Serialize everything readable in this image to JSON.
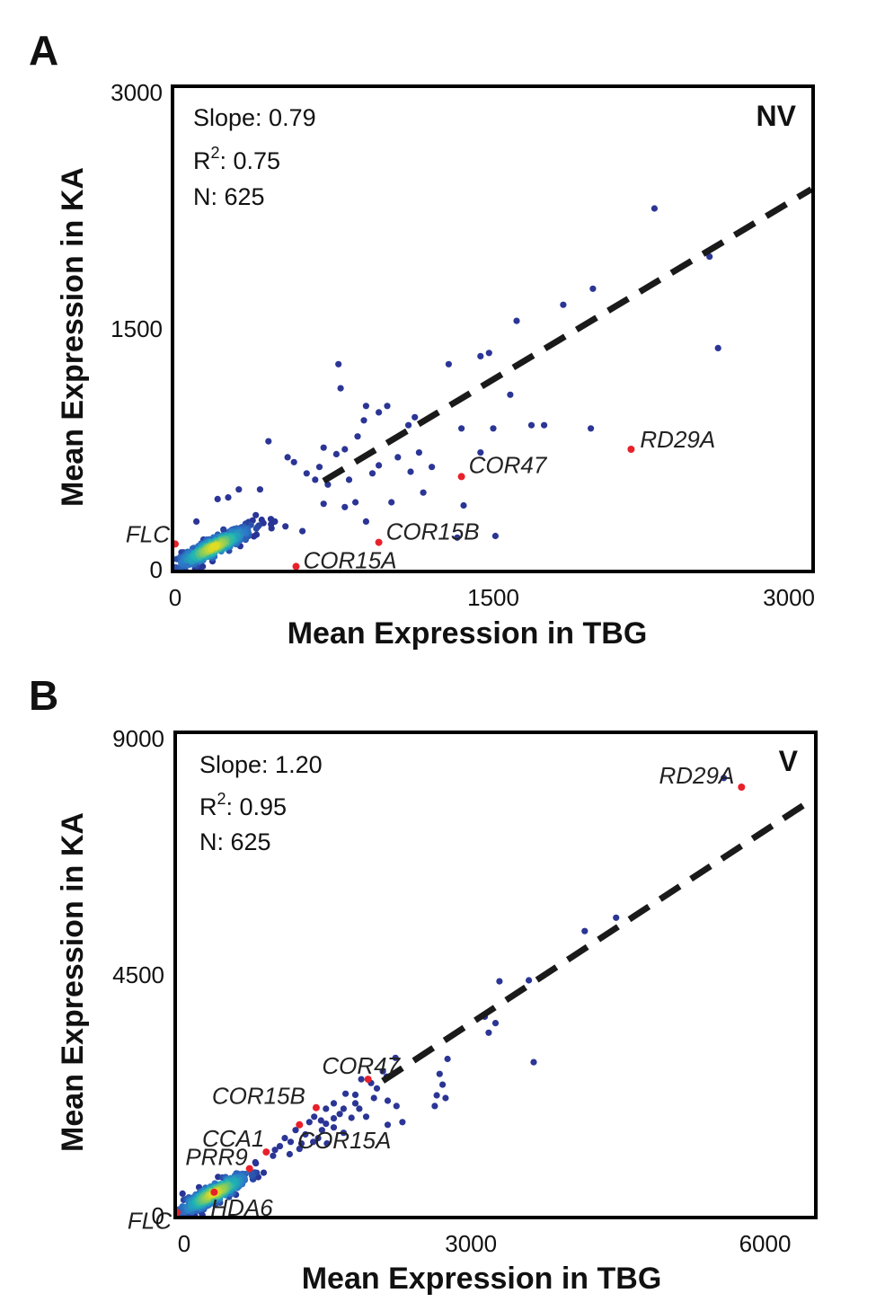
{
  "chart_data": [
    {
      "type": "scatter",
      "panel": "A",
      "condition": "NV",
      "xlabel": "Mean Expression in TBG",
      "ylabel": "Mean Expression in KA",
      "xlim": [
        0,
        3000
      ],
      "ylim": [
        0,
        3000
      ],
      "x_ticks": [
        "0",
        "1500",
        "3000"
      ],
      "y_ticks": [
        "0",
        "1500",
        "3000"
      ],
      "stats": {
        "slope": "Slope: 0.79",
        "r2_prefix": "R",
        "r2_sup": "2",
        "r2_value": ": 0.75",
        "n": "N: 625"
      },
      "fit_line": {
        "slope": 0.79,
        "intercept": 0
      },
      "highlighted_genes": [
        {
          "name": "RD29A",
          "x": 2150,
          "y": 750
        },
        {
          "name": "COR47",
          "x": 1350,
          "y": 580
        },
        {
          "name": "COR15B",
          "x": 960,
          "y": 170
        },
        {
          "name": "COR15A",
          "x": 570,
          "y": 20
        },
        {
          "name": "FLC",
          "x": 0,
          "y": 160
        }
      ],
      "outliers": [
        [
          2260,
          2250
        ],
        [
          2520,
          1950
        ],
        [
          2560,
          1380
        ],
        [
          1970,
          1750
        ],
        [
          1830,
          1650
        ],
        [
          1610,
          1550
        ],
        [
          1480,
          1350
        ],
        [
          1440,
          1330
        ],
        [
          1290,
          1280
        ],
        [
          1580,
          1090
        ],
        [
          1960,
          880
        ],
        [
          1740,
          900
        ],
        [
          1680,
          900
        ],
        [
          1500,
          880
        ],
        [
          1350,
          880
        ],
        [
          1440,
          730
        ],
        [
          1210,
          640
        ],
        [
          1150,
          730
        ],
        [
          1100,
          900
        ],
        [
          1130,
          950
        ],
        [
          1000,
          1020
        ],
        [
          960,
          980
        ],
        [
          900,
          1020
        ],
        [
          890,
          930
        ],
        [
          770,
          1280
        ],
        [
          780,
          1130
        ],
        [
          860,
          830
        ],
        [
          800,
          750
        ],
        [
          760,
          720
        ],
        [
          700,
          760
        ],
        [
          680,
          640
        ],
        [
          560,
          670
        ],
        [
          620,
          600
        ],
        [
          530,
          700
        ],
        [
          400,
          500
        ],
        [
          440,
          800
        ],
        [
          1330,
          200
        ],
        [
          1360,
          400
        ],
        [
          1170,
          480
        ],
        [
          1020,
          420
        ],
        [
          850,
          420
        ],
        [
          900,
          300
        ],
        [
          800,
          390
        ],
        [
          700,
          410
        ],
        [
          600,
          240
        ],
        [
          520,
          270
        ],
        [
          470,
          300
        ],
        [
          380,
          340
        ],
        [
          300,
          500
        ],
        [
          250,
          450
        ],
        [
          200,
          440
        ],
        [
          100,
          300
        ],
        [
          1510,
          210
        ],
        [
          930,
          600
        ],
        [
          1050,
          700
        ],
        [
          1110,
          610
        ],
        [
          960,
          650
        ],
        [
          820,
          560
        ],
        [
          720,
          530
        ],
        [
          660,
          560
        ]
      ],
      "cloud": {
        "center": [
          180,
          140
        ],
        "spread": [
          160,
          130
        ],
        "count": 330,
        "seed": 7
      }
    },
    {
      "type": "scatter",
      "panel": "B",
      "condition": "V",
      "xlabel": "Mean Expression in TBG",
      "ylabel": "Mean Expression in KA",
      "xlim": [
        0,
        6500
      ],
      "ylim": [
        0,
        9000
      ],
      "x_ticks_values": [
        0,
        3000,
        6000
      ],
      "x_ticks": [
        "0",
        "3000",
        "6000"
      ],
      "y_ticks": [
        "0",
        "4500",
        "9000"
      ],
      "stats": {
        "slope": "Slope: 1.20",
        "r2_prefix": "R",
        "r2_sup": "2",
        "r2_value": ": 0.95",
        "n": "N: 625"
      },
      "fit_line": {
        "slope": 1.2,
        "intercept": 0
      },
      "highlighted_genes": [
        {
          "name": "RD29A",
          "x": 5760,
          "y": 8010
        },
        {
          "name": "COR47",
          "x": 1950,
          "y": 2550
        },
        {
          "name": "COR15B",
          "x": 1420,
          "y": 2020
        },
        {
          "name": "COR15A",
          "x": 1250,
          "y": 1700
        },
        {
          "name": "CCA1",
          "x": 910,
          "y": 1190
        },
        {
          "name": "PRR9",
          "x": 740,
          "y": 880
        },
        {
          "name": "HDA6",
          "x": 380,
          "y": 440
        },
        {
          "name": "FLC",
          "x": 0,
          "y": 60
        }
      ],
      "outliers": [
        [
          5580,
          8180
        ],
        [
          4480,
          5570
        ],
        [
          4160,
          5320
        ],
        [
          3590,
          4400
        ],
        [
          3290,
          4380
        ],
        [
          3130,
          3730
        ],
        [
          3250,
          3600
        ],
        [
          3140,
          3720
        ],
        [
          3180,
          3420
        ],
        [
          2760,
          2930
        ],
        [
          2680,
          2650
        ],
        [
          2710,
          2450
        ],
        [
          2650,
          2250
        ],
        [
          2630,
          2050
        ],
        [
          2740,
          2200
        ],
        [
          3640,
          2870
        ],
        [
          2230,
          2950
        ],
        [
          2100,
          2700
        ],
        [
          2140,
          2600
        ],
        [
          1880,
          2550
        ],
        [
          1980,
          2480
        ],
        [
          1820,
          2260
        ],
        [
          1720,
          2280
        ],
        [
          1600,
          2100
        ],
        [
          1520,
          2000
        ],
        [
          2010,
          2200
        ],
        [
          2150,
          2150
        ],
        [
          2240,
          2050
        ],
        [
          2300,
          1750
        ],
        [
          2150,
          1700
        ],
        [
          1780,
          1830
        ],
        [
          1860,
          2000
        ],
        [
          1930,
          1850
        ],
        [
          1660,
          1900
        ],
        [
          1600,
          1650
        ],
        [
          1480,
          1600
        ],
        [
          1440,
          1450
        ],
        [
          1530,
          1350
        ],
        [
          1390,
          1380
        ],
        [
          1520,
          1720
        ],
        [
          1700,
          1550
        ],
        [
          1400,
          1850
        ],
        [
          1270,
          1350
        ],
        [
          1210,
          1600
        ],
        [
          1050,
          1300
        ],
        [
          980,
          1120
        ],
        [
          1150,
          1150
        ],
        [
          1820,
          2100
        ],
        [
          2040,
          2380
        ],
        [
          1350,
          1750
        ],
        [
          1470,
          1780
        ],
        [
          1310,
          1520
        ],
        [
          1100,
          1450
        ],
        [
          1000,
          1230
        ],
        [
          1600,
          1820
        ],
        [
          1700,
          2000
        ],
        [
          1250,
          1250
        ],
        [
          1160,
          1380
        ]
      ],
      "cloud": {
        "center": [
          380,
          420
        ],
        "spread": [
          330,
          400
        ],
        "count": 360,
        "seed": 11
      }
    }
  ],
  "panels": [
    {
      "letter": "A"
    },
    {
      "letter": "B"
    }
  ]
}
